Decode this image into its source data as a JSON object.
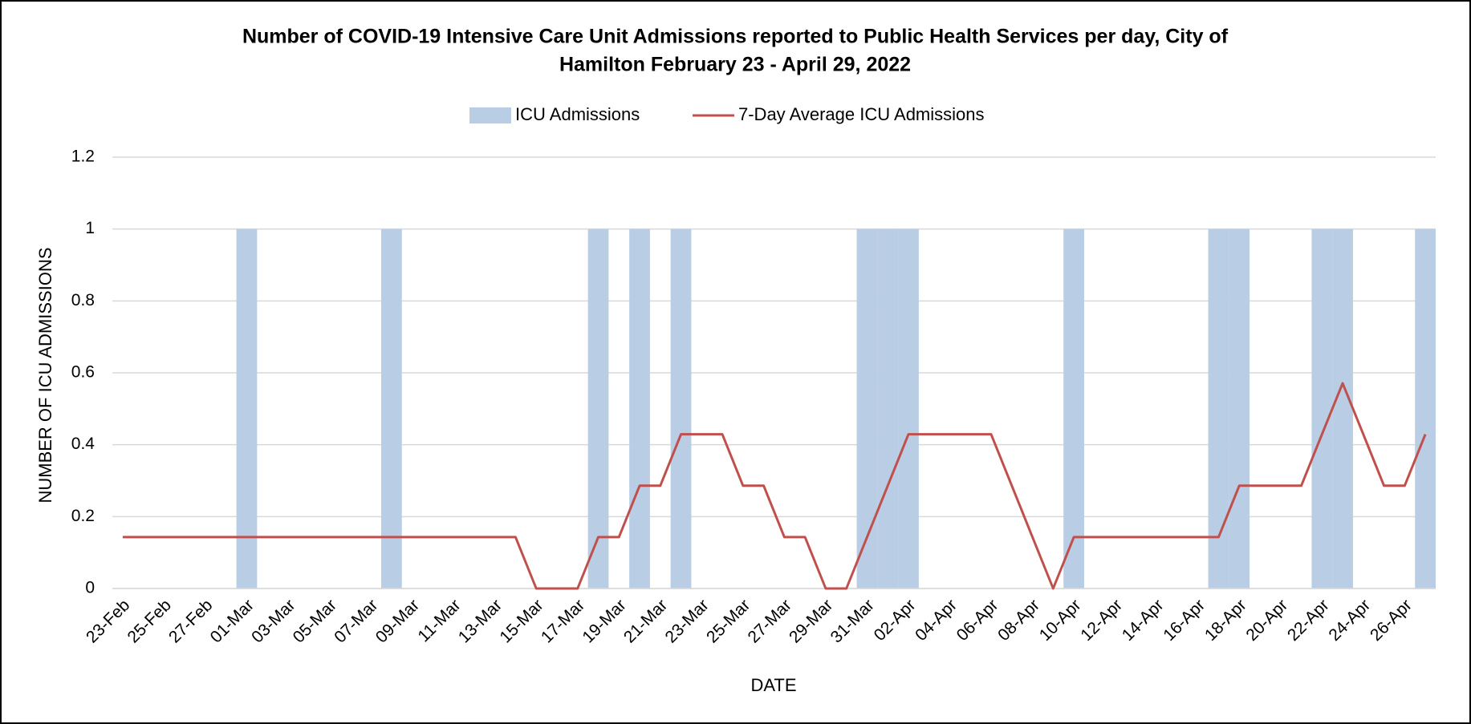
{
  "chart_data": {
    "type": "bar+line",
    "title": [
      "Number of COVID-19  Intensive Care Unit Admissions reported to Public Health Services  per day, City of",
      "Hamilton February 23 - April 29, 2022"
    ],
    "x_label": "DATE",
    "y_label": "NUMBER OF ICU ADMISSIONS",
    "categories": [
      "23-Feb",
      null,
      "25-Feb",
      null,
      "27-Feb",
      null,
      "01-Mar",
      null,
      "03-Mar",
      null,
      "05-Mar",
      null,
      "07-Mar",
      null,
      "09-Mar",
      null,
      "11-Mar",
      null,
      "13-Mar",
      null,
      "15-Mar",
      null,
      "17-Mar",
      null,
      "19-Mar",
      null,
      "21-Mar",
      null,
      "23-Mar",
      null,
      "25-Mar",
      null,
      "27-Mar",
      null,
      "29-Mar",
      null,
      "31-Mar",
      null,
      "02-Apr",
      null,
      "04-Apr",
      null,
      "06-Apr",
      null,
      "08-Apr",
      null,
      "10-Apr",
      null,
      "12-Apr",
      null,
      "14-Apr",
      null,
      "16-Apr",
      null,
      "18-Apr",
      null,
      "20-Apr",
      null,
      "22-Apr",
      null,
      "24-Apr",
      null,
      "26-Apr",
      null
    ],
    "series": [
      {
        "name": "ICU Admissions",
        "type": "bar",
        "color": "#b9cde5",
        "values": [
          0,
          0,
          0,
          0,
          0,
          0,
          1,
          0,
          0,
          0,
          0,
          0,
          0,
          1,
          0,
          0,
          0,
          0,
          0,
          0,
          0,
          0,
          0,
          1,
          0,
          1,
          0,
          1,
          0,
          0,
          0,
          0,
          0,
          0,
          0,
          0,
          1,
          1,
          1,
          0,
          0,
          0,
          0,
          0,
          0,
          0,
          1,
          0,
          0,
          0,
          0,
          0,
          0,
          1,
          1,
          0,
          0,
          0,
          1,
          1,
          0,
          0,
          0,
          1
        ]
      },
      {
        "name": "7-Day Average ICU Admissions",
        "type": "line",
        "color": "#c0504d",
        "values": [
          0.143,
          0.143,
          0.143,
          0.143,
          0.143,
          0.143,
          0.143,
          0.143,
          0.143,
          0.143,
          0.143,
          0.143,
          0.143,
          0.143,
          0.143,
          0.143,
          0.143,
          0.143,
          0.143,
          0.143,
          0,
          0,
          0,
          0.143,
          0.143,
          0.286,
          0.286,
          0.429,
          0.429,
          0.429,
          0.286,
          0.286,
          0.143,
          0.143,
          0,
          0,
          0.143,
          0.286,
          0.429,
          0.429,
          0.429,
          0.429,
          0.429,
          0.286,
          0.143,
          0,
          0.143,
          0.143,
          0.143,
          0.143,
          0.143,
          0.143,
          0.143,
          0.143,
          0.286,
          0.286,
          0.286,
          0.286,
          0.429,
          0.571,
          0.429,
          0.286,
          0.286,
          0.429
        ]
      }
    ],
    "ylim": [
      0,
      1.2
    ],
    "yticks": [
      0,
      0.2,
      0.4,
      0.6,
      0.8,
      1,
      1.2
    ],
    "grid": true,
    "legend": "top"
  }
}
